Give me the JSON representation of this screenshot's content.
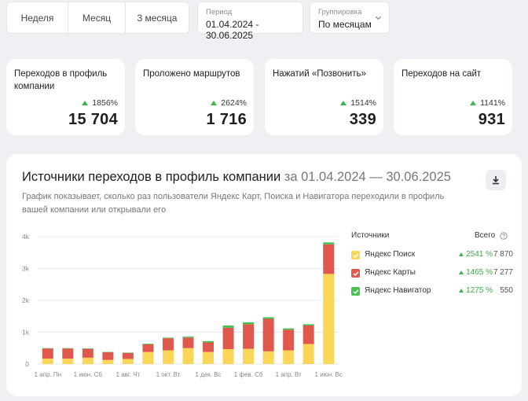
{
  "periods": [
    "Неделя",
    "Месяц",
    "3 месяца"
  ],
  "period": {
    "label": "Период",
    "value": "01.04.2024 - 30.06.2025"
  },
  "grouping": {
    "label": "Группировка",
    "value": "По месяцам"
  },
  "stats": [
    {
      "title": "Переходов в профиль компании",
      "delta": "1856%",
      "value": "15 704"
    },
    {
      "title": "Проложено маршрутов",
      "delta": "2624%",
      "value": "1 716"
    },
    {
      "title": "Нажатий «Позвонить»",
      "delta": "1514%",
      "value": "339"
    },
    {
      "title": "Переходов на сайт",
      "delta": "1141%",
      "value": "931"
    }
  ],
  "panel": {
    "title": "Источники переходов в профиль компании",
    "range": "за 01.04.2024 — 30.06.2025",
    "description": "График показывает, сколько раз пользователи Яндекс Карт, Поиска и Навигатора переходили в профиль вашей компании или открывали его",
    "icons": {
      "download": "download-icon"
    }
  },
  "legend": {
    "header_sources": "Источники",
    "header_total": "Всего",
    "help_icon": "help-icon",
    "items": [
      {
        "name": "Яндекс Поиск",
        "pct": "2541 %",
        "total": "7 870",
        "color": "#fbd558"
      },
      {
        "name": "Яндекс Карты",
        "pct": "1465 %",
        "total": "7 277",
        "color": "#e0584d"
      },
      {
        "name": "Яндекс Навигатор",
        "pct": "1275 %",
        "total": "550",
        "color": "#44c353"
      }
    ]
  },
  "chart_data": {
    "type": "bar",
    "stacked": true,
    "categories": [
      "2024-04",
      "2024-05",
      "2024-06",
      "2024-07",
      "2024-08",
      "2024-09",
      "2024-10",
      "2024-11",
      "2024-12",
      "2025-01",
      "2025-02",
      "2025-03",
      "2025-04",
      "2025-05",
      "2025-06"
    ],
    "x_tick_labels": [
      "1 апр. Пн",
      "1 июн. Сб",
      "1 авг. Чт",
      "1 окт. Вт",
      "1 дек. Вс",
      "1 фев. Сб",
      "1 апр. Вт",
      "1 июн. Вс"
    ],
    "y_tick_labels": [
      "0",
      "1k",
      "2k",
      "3k",
      "4k"
    ],
    "ylim": [
      0,
      4000
    ],
    "grid": true,
    "series": [
      {
        "name": "Яндекс Поиск",
        "color": "#fbd558",
        "values": [
          170,
          170,
          200,
          130,
          160,
          380,
          430,
          500,
          380,
          470,
          480,
          400,
          430,
          630,
          2830
        ]
      },
      {
        "name": "Яндекс Карты",
        "color": "#e0584d",
        "values": [
          320,
          320,
          280,
          240,
          190,
          240,
          380,
          330,
          300,
          670,
          770,
          1020,
          650,
          580,
          930
        ]
      },
      {
        "name": "Яндекс Навигатор",
        "color": "#44c353",
        "values": [
          10,
          10,
          10,
          10,
          10,
          20,
          20,
          30,
          40,
          70,
          60,
          50,
          40,
          40,
          60
        ]
      }
    ]
  }
}
